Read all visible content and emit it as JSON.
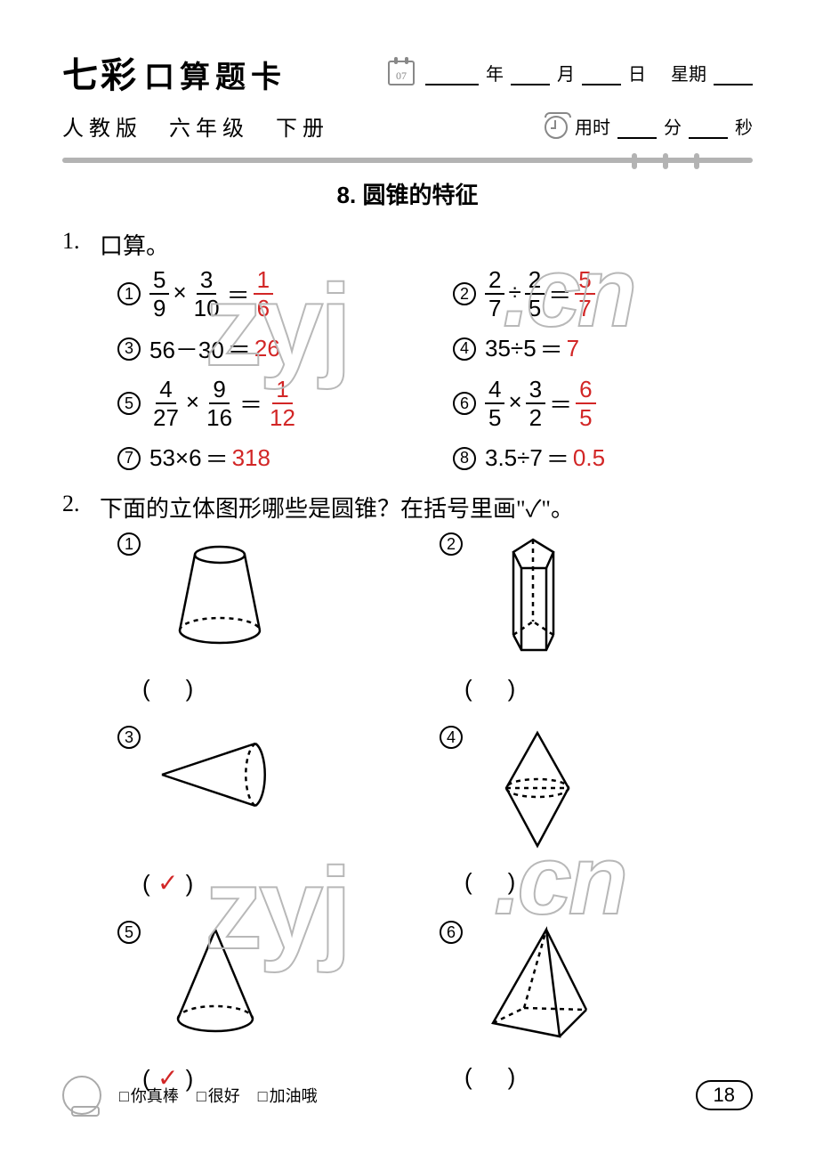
{
  "header": {
    "brand_prefix": "七彩",
    "brand_text": "口算题卡",
    "calendar_num": "07",
    "year_label": "年",
    "month_label": "月",
    "day_label": "日",
    "weekday_label": "星期",
    "edition": "人教版　六年级　下册",
    "timer_label": "用时",
    "minute_label": "分",
    "second_label": "秒"
  },
  "section": {
    "title": "8. 圆锥的特征"
  },
  "q1": {
    "num": "1.",
    "text": "口算。",
    "items": [
      {
        "idx": "1",
        "lhs_parts": [
          "frac:5/9",
          "×",
          "frac:3/10"
        ],
        "ans_parts": [
          "frac:1/6"
        ]
      },
      {
        "idx": "2",
        "lhs_parts": [
          "frac:2/7",
          "÷",
          "frac:2/5"
        ],
        "ans_parts": [
          "frac:5/7"
        ]
      },
      {
        "idx": "3",
        "lhs_parts": [
          "56－30"
        ],
        "ans_parts": [
          "26"
        ]
      },
      {
        "idx": "4",
        "lhs_parts": [
          "35÷5"
        ],
        "ans_parts": [
          "7"
        ]
      },
      {
        "idx": "5",
        "lhs_parts": [
          "frac:4/27",
          "×",
          "frac:9/16"
        ],
        "ans_parts": [
          "frac:1/12"
        ]
      },
      {
        "idx": "6",
        "lhs_parts": [
          "frac:4/5",
          "×",
          "frac:3/2"
        ],
        "ans_parts": [
          "frac:6/5"
        ]
      },
      {
        "idx": "7",
        "lhs_parts": [
          "53×6"
        ],
        "ans_parts": [
          "318"
        ]
      },
      {
        "idx": "8",
        "lhs_parts": [
          "3.5÷7"
        ],
        "ans_parts": [
          "0.5"
        ]
      }
    ]
  },
  "q2": {
    "num": "2.",
    "text": "下面的立体图形哪些是圆锥？在括号里画\"✓\"。",
    "shapes": [
      {
        "idx": "1",
        "type": "frustum",
        "answer": ""
      },
      {
        "idx": "2",
        "type": "pentagonal-prism",
        "answer": ""
      },
      {
        "idx": "3",
        "type": "cone-sideways",
        "answer": "✓"
      },
      {
        "idx": "4",
        "type": "double-cone",
        "answer": ""
      },
      {
        "idx": "5",
        "type": "cone-upright",
        "answer": "✓"
      },
      {
        "idx": "6",
        "type": "pyramid",
        "answer": ""
      }
    ],
    "paren_left": "(",
    "paren_right": ")"
  },
  "watermark": {
    "text1": "zyj",
    "text2": ".cn"
  },
  "footer": {
    "ratings": [
      "你真棒",
      "很好",
      "加油哦"
    ],
    "page": "18"
  },
  "colors": {
    "answer": "#d22626",
    "gray": "#b3b3b3",
    "text": "#000000",
    "background": "#ffffff"
  }
}
